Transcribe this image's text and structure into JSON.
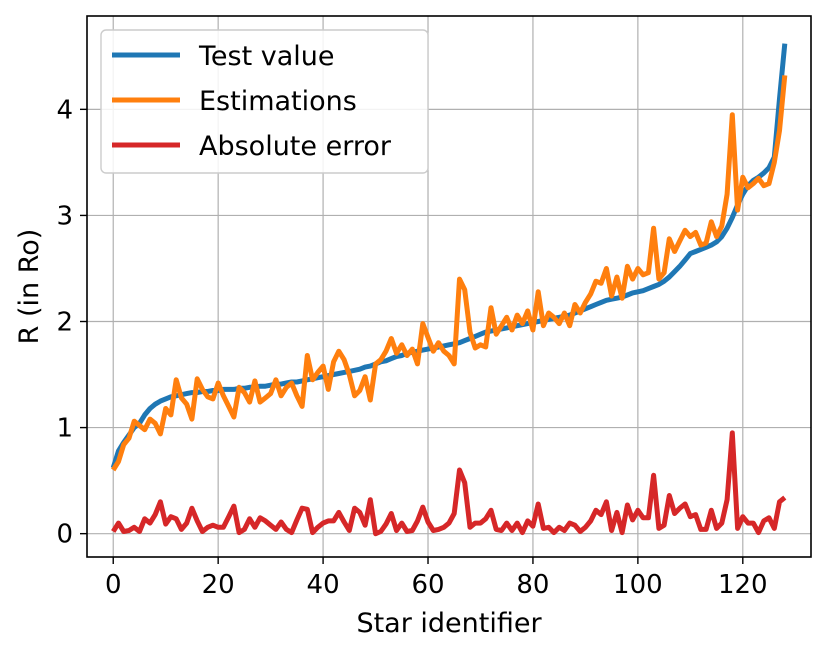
{
  "chart_data": {
    "type": "line",
    "title": "",
    "xlabel": "Star identifier",
    "ylabel": "R (in Ro)",
    "xlim": [
      -5,
      133
    ],
    "ylim": [
      -0.22,
      4.88
    ],
    "xticks": [
      0,
      20,
      40,
      60,
      80,
      100,
      120
    ],
    "yticks": [
      0,
      1,
      2,
      3,
      4
    ],
    "grid": true,
    "legend_position": "top-left",
    "series": [
      {
        "name": "Test value",
        "color": "#1f77b4",
        "x": [
          0,
          1,
          2,
          3,
          4,
          5,
          6,
          7,
          8,
          9,
          10,
          11,
          12,
          13,
          14,
          15,
          16,
          17,
          18,
          19,
          20,
          21,
          22,
          23,
          24,
          25,
          26,
          27,
          28,
          29,
          30,
          31,
          32,
          33,
          34,
          35,
          36,
          37,
          38,
          39,
          40,
          41,
          42,
          43,
          44,
          45,
          46,
          47,
          48,
          49,
          50,
          51,
          52,
          53,
          54,
          55,
          56,
          57,
          58,
          59,
          60,
          61,
          62,
          63,
          64,
          65,
          66,
          67,
          68,
          69,
          70,
          71,
          72,
          73,
          74,
          75,
          76,
          77,
          78,
          79,
          80,
          81,
          82,
          83,
          84,
          85,
          86,
          87,
          88,
          89,
          90,
          91,
          92,
          93,
          94,
          95,
          96,
          97,
          98,
          99,
          100,
          101,
          102,
          103,
          104,
          105,
          106,
          107,
          108,
          109,
          110,
          111,
          112,
          113,
          114,
          115,
          116,
          117,
          118,
          119,
          120,
          121,
          122,
          123,
          124,
          125,
          126,
          127,
          128
        ],
        "values": [
          0.62,
          0.78,
          0.86,
          0.93,
          1.0,
          1.04,
          1.12,
          1.18,
          1.22,
          1.25,
          1.27,
          1.29,
          1.3,
          1.31,
          1.32,
          1.33,
          1.33,
          1.34,
          1.34,
          1.35,
          1.35,
          1.36,
          1.36,
          1.36,
          1.37,
          1.37,
          1.38,
          1.38,
          1.39,
          1.39,
          1.4,
          1.41,
          1.41,
          1.42,
          1.43,
          1.43,
          1.44,
          1.45,
          1.46,
          1.47,
          1.48,
          1.49,
          1.5,
          1.51,
          1.52,
          1.53,
          1.54,
          1.55,
          1.57,
          1.58,
          1.6,
          1.62,
          1.63,
          1.65,
          1.67,
          1.68,
          1.7,
          1.71,
          1.72,
          1.73,
          1.74,
          1.75,
          1.76,
          1.77,
          1.78,
          1.79,
          1.8,
          1.82,
          1.84,
          1.86,
          1.88,
          1.9,
          1.91,
          1.92,
          1.93,
          1.94,
          1.95,
          1.96,
          1.97,
          1.98,
          1.99,
          2.0,
          2.01,
          2.02,
          2.03,
          2.04,
          2.05,
          2.06,
          2.08,
          2.1,
          2.12,
          2.14,
          2.16,
          2.18,
          2.2,
          2.21,
          2.22,
          2.23,
          2.25,
          2.27,
          2.28,
          2.29,
          2.31,
          2.33,
          2.35,
          2.38,
          2.42,
          2.47,
          2.52,
          2.58,
          2.64,
          2.66,
          2.68,
          2.7,
          2.72,
          2.75,
          2.8,
          2.88,
          2.98,
          3.1,
          3.2,
          3.28,
          3.33,
          3.36,
          3.4,
          3.45,
          3.55,
          4.1,
          4.62
        ]
      },
      {
        "name": "Estimations",
        "color": "#ff7f0e",
        "x": [
          0,
          1,
          2,
          3,
          4,
          5,
          6,
          7,
          8,
          9,
          10,
          11,
          12,
          13,
          14,
          15,
          16,
          17,
          18,
          19,
          20,
          21,
          22,
          23,
          24,
          25,
          26,
          27,
          28,
          29,
          30,
          31,
          32,
          33,
          34,
          35,
          36,
          37,
          38,
          39,
          40,
          41,
          42,
          43,
          44,
          45,
          46,
          47,
          48,
          49,
          50,
          51,
          52,
          53,
          54,
          55,
          56,
          57,
          58,
          59,
          60,
          61,
          62,
          63,
          64,
          65,
          66,
          67,
          68,
          69,
          70,
          71,
          72,
          73,
          74,
          75,
          76,
          77,
          78,
          79,
          80,
          81,
          82,
          83,
          84,
          85,
          86,
          87,
          88,
          89,
          90,
          91,
          92,
          93,
          94,
          95,
          96,
          97,
          98,
          99,
          100,
          101,
          102,
          103,
          104,
          105,
          106,
          107,
          108,
          109,
          110,
          111,
          112,
          113,
          114,
          115,
          116,
          117,
          118,
          119,
          120,
          121,
          122,
          123,
          124,
          125,
          126,
          127,
          128
        ],
        "values": [
          0.6,
          0.68,
          0.84,
          0.9,
          1.06,
          1.02,
          0.98,
          1.08,
          1.04,
          0.94,
          1.18,
          1.12,
          1.45,
          1.28,
          1.22,
          1.08,
          1.46,
          1.36,
          1.29,
          1.27,
          1.42,
          1.3,
          1.2,
          1.1,
          1.38,
          1.33,
          1.24,
          1.44,
          1.24,
          1.28,
          1.32,
          1.45,
          1.3,
          1.38,
          1.42,
          1.3,
          1.2,
          1.68,
          1.45,
          1.52,
          1.58,
          1.36,
          1.62,
          1.72,
          1.64,
          1.5,
          1.3,
          1.35,
          1.48,
          1.26,
          1.6,
          1.64,
          1.72,
          1.84,
          1.7,
          1.78,
          1.68,
          1.74,
          1.6,
          1.98,
          1.85,
          1.72,
          1.8,
          1.72,
          1.68,
          1.6,
          2.4,
          2.3,
          1.9,
          1.75,
          1.78,
          1.76,
          2.13,
          1.88,
          1.96,
          2.04,
          1.92,
          2.06,
          1.98,
          2.1,
          1.92,
          2.28,
          1.96,
          2.08,
          2.04,
          1.98,
          2.08,
          1.96,
          2.16,
          2.08,
          2.18,
          2.26,
          2.38,
          2.36,
          2.5,
          2.24,
          2.42,
          2.22,
          2.52,
          2.4,
          2.5,
          2.44,
          2.46,
          2.88,
          2.4,
          2.46,
          2.78,
          2.66,
          2.76,
          2.86,
          2.8,
          2.84,
          2.72,
          2.74,
          2.94,
          2.8,
          2.9,
          3.2,
          3.95,
          3.05,
          3.36,
          3.26,
          3.3,
          3.35,
          3.28,
          3.3,
          3.5,
          3.8,
          4.32
        ]
      },
      {
        "name": "Absolute error",
        "color": "#d62728",
        "x": [
          0,
          1,
          2,
          3,
          4,
          5,
          6,
          7,
          8,
          9,
          10,
          11,
          12,
          13,
          14,
          15,
          16,
          17,
          18,
          19,
          20,
          21,
          22,
          23,
          24,
          25,
          26,
          27,
          28,
          29,
          30,
          31,
          32,
          33,
          34,
          35,
          36,
          37,
          38,
          39,
          40,
          41,
          42,
          43,
          44,
          45,
          46,
          47,
          48,
          49,
          50,
          51,
          52,
          53,
          54,
          55,
          56,
          57,
          58,
          59,
          60,
          61,
          62,
          63,
          64,
          65,
          66,
          67,
          68,
          69,
          70,
          71,
          72,
          73,
          74,
          75,
          76,
          77,
          78,
          79,
          80,
          81,
          82,
          83,
          84,
          85,
          86,
          87,
          88,
          89,
          90,
          91,
          92,
          93,
          94,
          95,
          96,
          97,
          98,
          99,
          100,
          101,
          102,
          103,
          104,
          105,
          106,
          107,
          108,
          109,
          110,
          111,
          112,
          113,
          114,
          115,
          116,
          117,
          118,
          119,
          120,
          121,
          122,
          123,
          124,
          125,
          126,
          127,
          128
        ],
        "values": [
          0.02,
          0.1,
          0.02,
          0.03,
          0.06,
          0.02,
          0.14,
          0.1,
          0.18,
          0.3,
          0.09,
          0.16,
          0.14,
          0.04,
          0.1,
          0.24,
          0.12,
          0.02,
          0.06,
          0.08,
          0.06,
          0.06,
          0.16,
          0.26,
          0.01,
          0.04,
          0.14,
          0.06,
          0.15,
          0.12,
          0.08,
          0.04,
          0.11,
          0.04,
          0.01,
          0.13,
          0.24,
          0.23,
          0.01,
          0.06,
          0.1,
          0.12,
          0.12,
          0.2,
          0.11,
          0.03,
          0.24,
          0.2,
          0.08,
          0.32,
          0.0,
          0.02,
          0.09,
          0.19,
          0.03,
          0.1,
          0.02,
          0.03,
          0.12,
          0.25,
          0.11,
          0.03,
          0.04,
          0.06,
          0.1,
          0.19,
          0.6,
          0.48,
          0.06,
          0.1,
          0.1,
          0.14,
          0.22,
          0.04,
          0.03,
          0.1,
          0.03,
          0.1,
          0.01,
          0.12,
          0.07,
          0.28,
          0.05,
          0.06,
          0.01,
          0.06,
          0.03,
          0.1,
          0.08,
          0.02,
          0.06,
          0.12,
          0.22,
          0.18,
          0.3,
          0.03,
          0.2,
          0.01,
          0.27,
          0.13,
          0.22,
          0.15,
          0.15,
          0.55,
          0.05,
          0.08,
          0.36,
          0.19,
          0.24,
          0.28,
          0.16,
          0.18,
          0.04,
          0.04,
          0.22,
          0.05,
          0.1,
          0.32,
          0.95,
          0.05,
          0.16,
          0.1,
          0.1,
          0.01,
          0.12,
          0.15,
          0.05,
          0.3,
          0.34
        ]
      }
    ]
  }
}
